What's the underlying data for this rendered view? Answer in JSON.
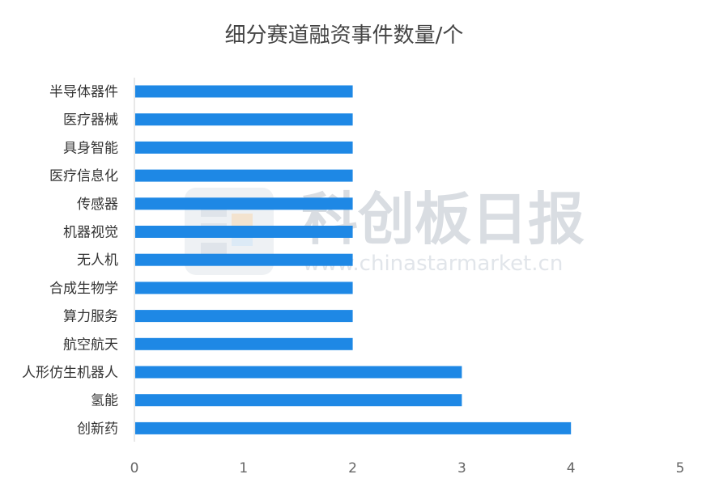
{
  "chart_data": {
    "type": "bar",
    "orientation": "horizontal",
    "title": "细分赛道融资事件数量/个",
    "categories": [
      "半导体器件",
      "医疗器械",
      "具身智能",
      "医疗信息化",
      "传感器",
      "机器视觉",
      "无人机",
      "合成生物学",
      "算力服务",
      "航空航天",
      "人形仿生机器人",
      "氢能",
      "创新药"
    ],
    "values": [
      2,
      2,
      2,
      2,
      2,
      2,
      2,
      2,
      2,
      2,
      3,
      3,
      4
    ],
    "xlim": [
      0,
      5
    ],
    "xticks": [
      "0",
      "1",
      "2",
      "3",
      "4",
      "5"
    ],
    "grid": false,
    "bar_color": "#1e88e5"
  },
  "watermark": {
    "text": "科创板日报",
    "url": "www.chinastarmarket.cn"
  }
}
